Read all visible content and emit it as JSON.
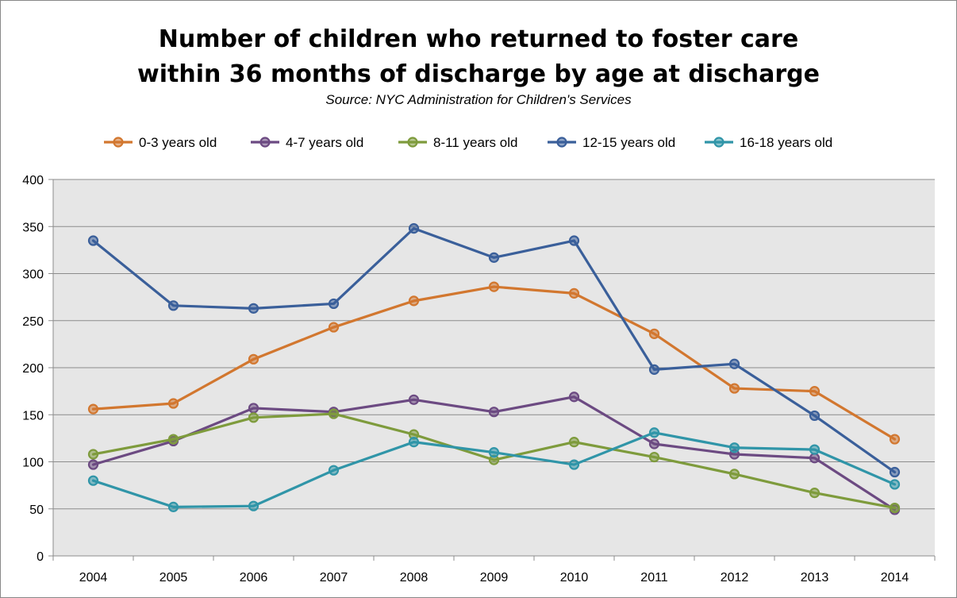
{
  "chart_data": {
    "type": "line",
    "title": [
      "Number of children who returned to foster care",
      "within 36 months of discharge by age at discharge"
    ],
    "subtitle": "Source: NYC Administration for Children's Services",
    "x": [
      "2004",
      "2005",
      "2006",
      "2007",
      "2008",
      "2009",
      "2010",
      "2011",
      "2012",
      "2013",
      "2014"
    ],
    "ylim": [
      0,
      400
    ],
    "yticks": [
      0,
      50,
      100,
      150,
      200,
      250,
      300,
      350,
      400
    ],
    "grid": true,
    "legend_position": "top",
    "series": [
      {
        "name": "0-3 years old",
        "color": "#D2772F",
        "values": [
          156,
          162,
          209,
          243,
          271,
          286,
          279,
          236,
          178,
          175,
          124
        ]
      },
      {
        "name": "4-7 years old",
        "color": "#6C4A82",
        "values": [
          97,
          122,
          157,
          153,
          166,
          153,
          169,
          119,
          108,
          104,
          49
        ]
      },
      {
        "name": "8-11 years old",
        "color": "#7E9B3C",
        "values": [
          108,
          124,
          147,
          151,
          129,
          102,
          121,
          105,
          87,
          67,
          51
        ]
      },
      {
        "name": "12-15 years old",
        "color": "#3A5F9A",
        "values": [
          335,
          266,
          263,
          268,
          348,
          317,
          335,
          198,
          204,
          149,
          89
        ]
      },
      {
        "name": "16-18 years old",
        "color": "#3095A8",
        "values": [
          80,
          52,
          53,
          91,
          121,
          110,
          97,
          131,
          115,
          113,
          76
        ]
      }
    ]
  }
}
